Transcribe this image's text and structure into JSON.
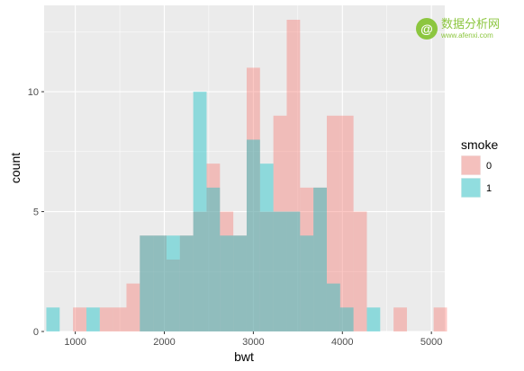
{
  "chart_data": {
    "type": "histogram",
    "xlabel": "bwt",
    "ylabel": "count",
    "x_ticks": [
      1000,
      2000,
      3000,
      4000,
      5000
    ],
    "y_ticks": [
      0,
      5,
      10
    ],
    "xlim": [
      650,
      5150
    ],
    "ylim": [
      0,
      13.6
    ],
    "bin_width": 150,
    "bin_start": 675,
    "grid": true,
    "legend_position": "right",
    "legend": {
      "title": "smoke",
      "items": [
        {
          "label": "0",
          "color": "#F8766D"
        },
        {
          "label": "1",
          "color": "#00BFC4"
        }
      ]
    },
    "series": [
      {
        "name": "0",
        "color": "#F8766D",
        "values": [
          0,
          0,
          1,
          0,
          1,
          1,
          2,
          4,
          4,
          3,
          4,
          5,
          7,
          5,
          4,
          11,
          5,
          9,
          13,
          6,
          6,
          9,
          9,
          5,
          0,
          0,
          1,
          0,
          0,
          1,
          0
        ]
      },
      {
        "name": "1",
        "color": "#00BFC4",
        "values": [
          1,
          0,
          0,
          1,
          0,
          0,
          0,
          4,
          4,
          4,
          4,
          10,
          6,
          4,
          4,
          8,
          7,
          5,
          5,
          4,
          6,
          2,
          1,
          0,
          1,
          0,
          0,
          0,
          0,
          0,
          0
        ]
      }
    ]
  },
  "watermark": {
    "symbol": "@",
    "cn_text": "数据分析网",
    "url": "www.afenxi.com"
  }
}
